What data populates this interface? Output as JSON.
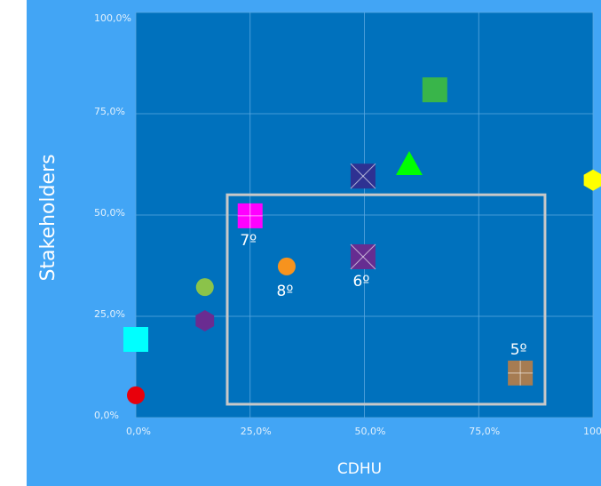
{
  "chart_data": {
    "type": "scatter",
    "x_label": "CDHU",
    "y_label": "Stakeholders",
    "xlim": [
      0,
      100
    ],
    "ylim": [
      0,
      100
    ],
    "xticks": [
      {
        "value": 0,
        "label": "0,0%"
      },
      {
        "value": 25,
        "label": "25,0%"
      },
      {
        "value": 50,
        "label": "50,0%"
      },
      {
        "value": 75,
        "label": "75,0%"
      },
      {
        "value": 100,
        "label": "100,0%"
      }
    ],
    "yticks": [
      {
        "value": 0,
        "label": "0,0%"
      },
      {
        "value": 25,
        "label": "25,0%"
      },
      {
        "value": 50,
        "label": "50,0%"
      },
      {
        "value": 75,
        "label": "75,0%"
      },
      {
        "value": 100,
        "label": "100,0%"
      }
    ],
    "grid": true,
    "highlight": {
      "xlim": [
        20,
        89.5
      ],
      "ylim": [
        3.3,
        55
      ],
      "color": "#c8c8c8"
    },
    "points": [
      {
        "x": 0,
        "y": 5.5,
        "color": "#e8000b",
        "marker": "circle"
      },
      {
        "x": 0,
        "y": 19.3,
        "color": "#00ffff",
        "marker": "square"
      },
      {
        "x": 15.1,
        "y": 32.2,
        "color": "#8bc34a",
        "marker": "circle"
      },
      {
        "x": 15.1,
        "y": 23.9,
        "color": "#6a2c91",
        "marker": "hexagon"
      },
      {
        "x": 25,
        "y": 49.8,
        "color": "#ff00ff",
        "marker": "square-plus",
        "label": "7º"
      },
      {
        "x": 33,
        "y": 37.3,
        "color": "#f7931e",
        "marker": "circle",
        "label": "8º"
      },
      {
        "x": 49.7,
        "y": 39.7,
        "color": "#662d91",
        "marker": "square-x",
        "label": "6º"
      },
      {
        "x": 49.7,
        "y": 59.6,
        "color": "#2e3192",
        "marker": "square-x"
      },
      {
        "x": 59.8,
        "y": 62.5,
        "color": "#00ff00",
        "marker": "triangle"
      },
      {
        "x": 65.4,
        "y": 80.9,
        "color": "#39b54a",
        "marker": "square"
      },
      {
        "x": 100,
        "y": 58.6,
        "color": "#ffff00",
        "marker": "hexagon"
      },
      {
        "x": 84.1,
        "y": 11,
        "color": "#a67c52",
        "marker": "square-plus",
        "label": "5º"
      }
    ]
  }
}
